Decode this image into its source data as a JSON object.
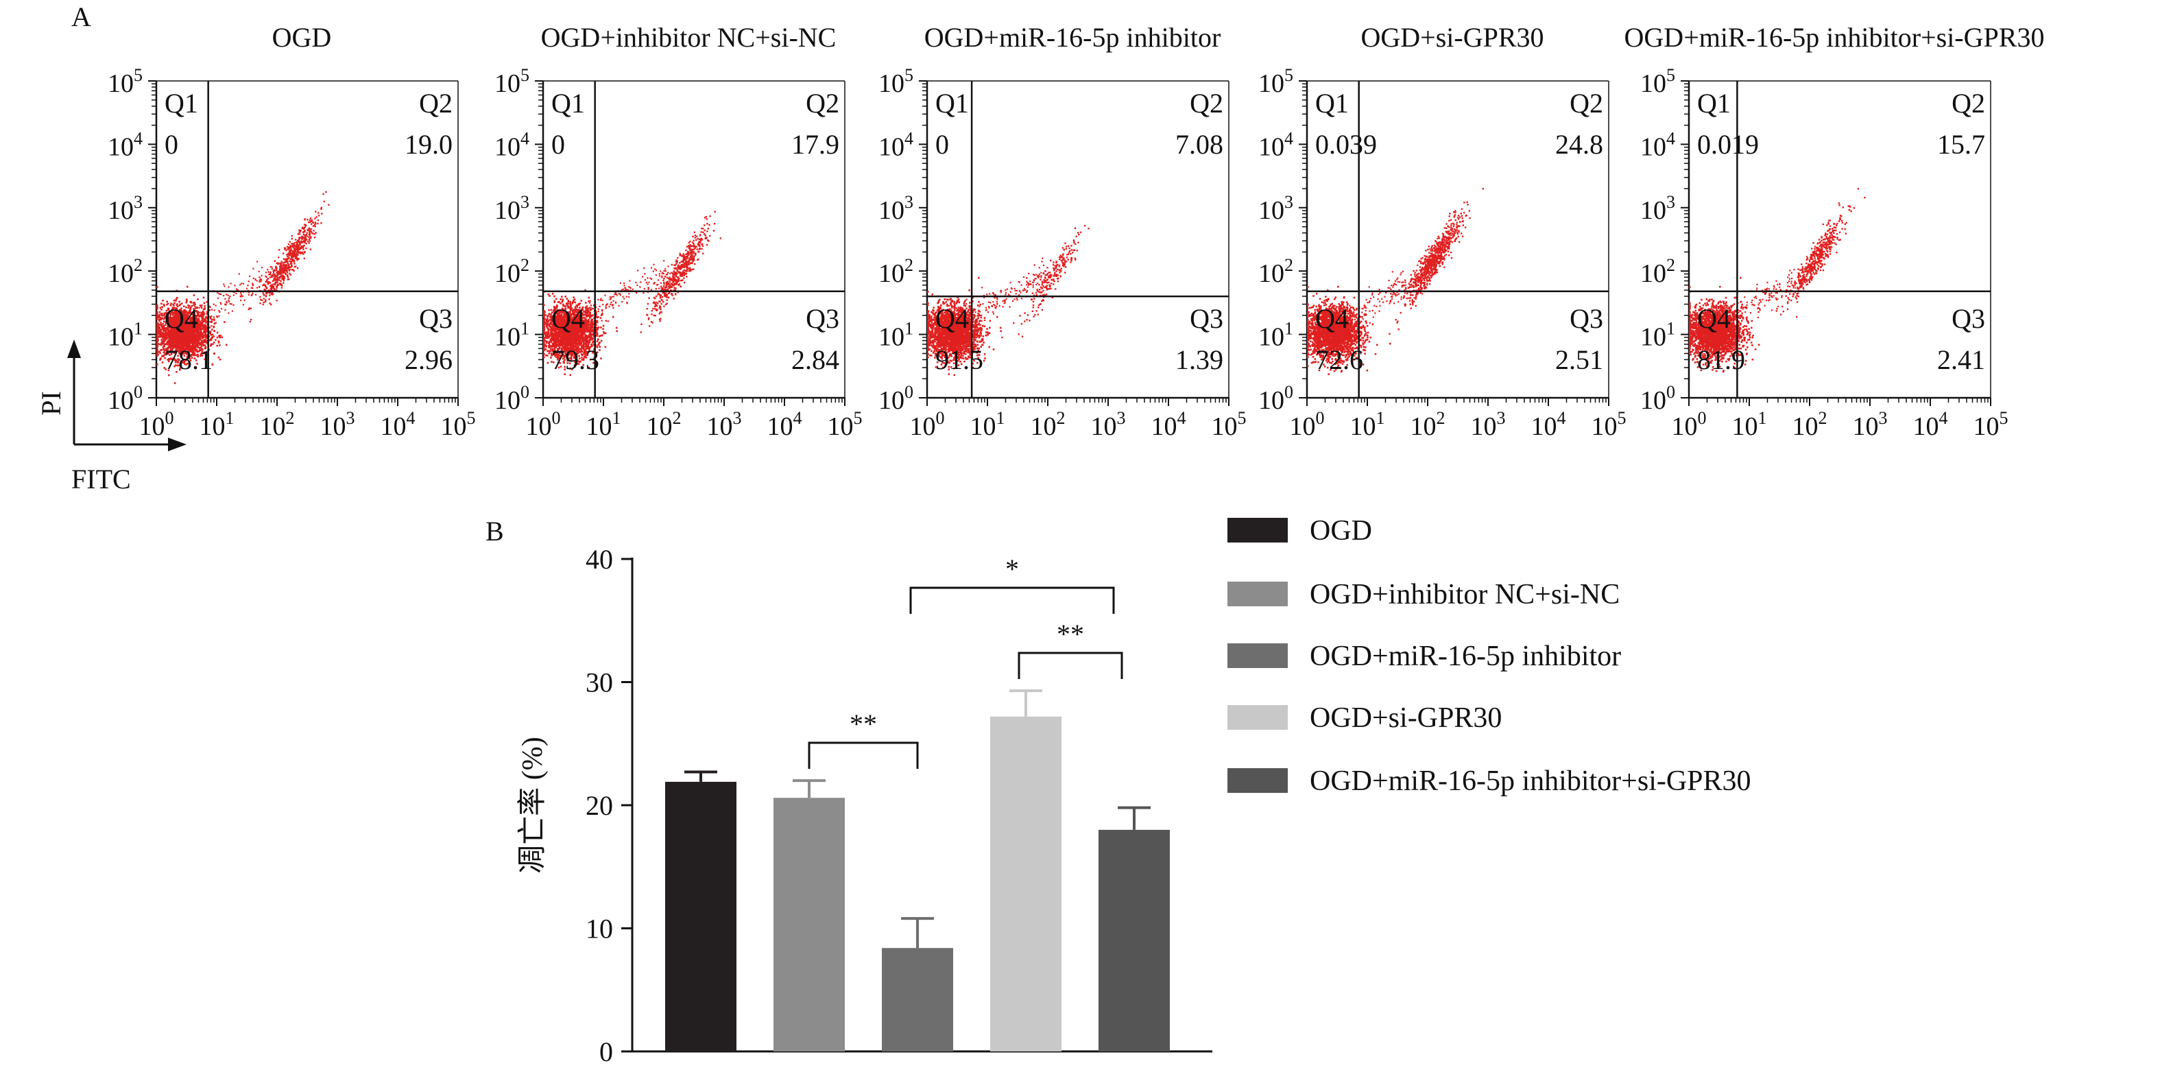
{
  "panel_a": {
    "label": "A",
    "x_axis_label": "FITC",
    "y_axis_label": "PI",
    "tick_exponents": [
      0,
      1,
      2,
      3,
      4,
      5
    ],
    "tick_base": "10",
    "quadrant_names": [
      "Q1",
      "Q2",
      "Q3",
      "Q4"
    ],
    "plots": [
      {
        "title": "OGD",
        "q1": "0",
        "q2": "19.0",
        "q3": "2.96",
        "q4": "78.1"
      },
      {
        "title": "OGD+inhibitor NC+si-NC",
        "q1": "0",
        "q2": "17.9",
        "q3": "2.84",
        "q4": "79.3"
      },
      {
        "title": "OGD+miR-16-5p inhibitor",
        "q1": "0",
        "q2": "7.08",
        "q3": "1.39",
        "q4": "91.5"
      },
      {
        "title": "OGD+si-GPR30",
        "q1": "0.039",
        "q2": "24.8",
        "q3": "2.51",
        "q4": "72.6"
      },
      {
        "title": "OGD+miR-16-5p inhibitor+si-GPR30",
        "q1": "0.019",
        "q2": "15.7",
        "q3": "2.41",
        "q4": "81.9"
      }
    ],
    "dot_color": "#e02020"
  },
  "panel_b": {
    "label": "B",
    "chart_data": {
      "type": "bar",
      "ylabel": "凋亡率 (%)",
      "ylim": [
        0,
        40
      ],
      "yticks": [
        0,
        10,
        20,
        30,
        40
      ],
      "categories": [
        "OGD",
        "OGD+inhibitor NC+si-NC",
        "OGD+miR-16-5p inhibitor",
        "OGD+si-GPR30",
        "OGD+miR-16-5p inhibitor+si-GPR30"
      ],
      "values": [
        21.9,
        20.6,
        8.4,
        27.2,
        18.0
      ],
      "errors": [
        0.8,
        1.4,
        2.4,
        2.1,
        1.8
      ],
      "colors": [
        "#231f20",
        "#8c8c8c",
        "#6e6e6e",
        "#c8c8c8",
        "#555555"
      ],
      "legend_position": "right",
      "significance": [
        {
          "from": 1,
          "to": 2,
          "label": "**"
        },
        {
          "from": 2,
          "to": 4,
          "label": "*"
        },
        {
          "from": 3,
          "to": 4,
          "label": "**"
        }
      ]
    }
  }
}
